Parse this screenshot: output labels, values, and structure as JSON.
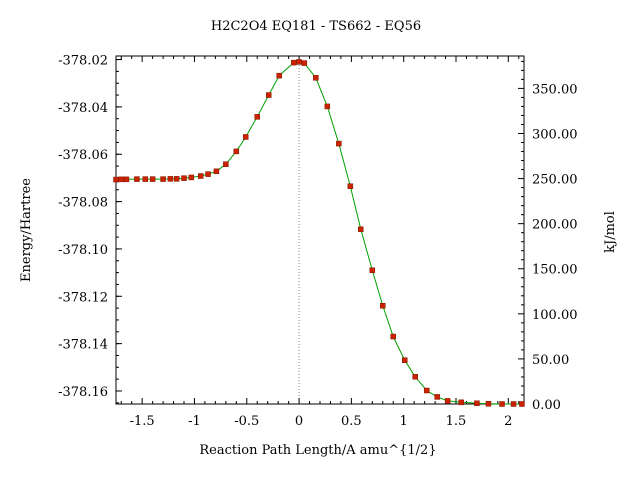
{
  "chart_data": {
    "type": "line",
    "title": "H2C2O4    EQ181 - TS662 - EQ56",
    "xlabel": "Reaction Path Length/A amu^{1/2}",
    "ylabel": "Energy/Hartree",
    "y2label": "kJ/mol",
    "xlim": [
      -1.75,
      2.15
    ],
    "ylim": [
      -378.1655,
      -378.0185
    ],
    "y2lim": [
      0,
      385.94
    ],
    "xticks": [
      "-1.5",
      "-1",
      "-0.5",
      "0",
      "0.5",
      "1",
      "1.5",
      "2"
    ],
    "xtick_values": [
      -1.5,
      -1,
      -0.5,
      0,
      0.5,
      1,
      1.5,
      2
    ],
    "yticks": [
      "-378.02",
      "-378.04",
      "-378.06",
      "-378.08",
      "-378.10",
      "-378.12",
      "-378.14",
      "-378.16"
    ],
    "ytick_values": [
      -378.02,
      -378.04,
      -378.06,
      -378.08,
      -378.1,
      -378.12,
      -378.14,
      -378.16
    ],
    "y2ticks": [
      "350.00",
      "300.00",
      "250.00",
      "200.00",
      "150.00",
      "100.00",
      "50.00",
      "0.00"
    ],
    "y2tick_values": [
      350,
      300,
      250,
      200,
      150,
      100,
      50,
      0
    ],
    "ts_marker_x": 0,
    "curve_color": "#00a000",
    "marker_color": "#cc2200",
    "series": [
      {
        "x": [
          -1.75,
          -1.7,
          -1.65,
          -1.55,
          -1.47,
          -1.4,
          -1.3,
          -1.23,
          -1.17,
          -1.1,
          -1.03,
          -0.94,
          -0.87,
          -0.79,
          -0.7,
          -0.6,
          -0.51,
          -0.4,
          -0.29,
          -0.19,
          -0.05,
          0.0,
          0.05,
          0.16,
          0.27,
          0.38,
          0.49,
          0.59,
          0.7,
          0.8,
          0.9,
          1.01,
          1.11,
          1.22,
          1.32,
          1.42,
          1.55,
          1.7,
          1.81,
          1.94,
          2.05,
          2.13
        ],
        "y": [
          -378.0707,
          -378.0706,
          -378.0706,
          -378.0705,
          -378.0705,
          -378.0705,
          -378.0705,
          -378.0704,
          -378.0704,
          -378.0701,
          -378.0698,
          -378.0692,
          -378.0684,
          -378.0672,
          -378.0642,
          -378.0588,
          -378.0527,
          -378.0442,
          -378.035,
          -378.0268,
          -378.0213,
          -378.021,
          -378.0215,
          -378.0277,
          -378.0398,
          -378.0555,
          -378.0735,
          -378.0917,
          -378.109,
          -378.124,
          -378.137,
          -378.147,
          -378.154,
          -378.1598,
          -378.1625,
          -378.1642,
          -378.1648,
          -378.1652,
          -378.1654,
          -378.1655,
          -378.1655,
          -378.1655
        ]
      }
    ]
  }
}
